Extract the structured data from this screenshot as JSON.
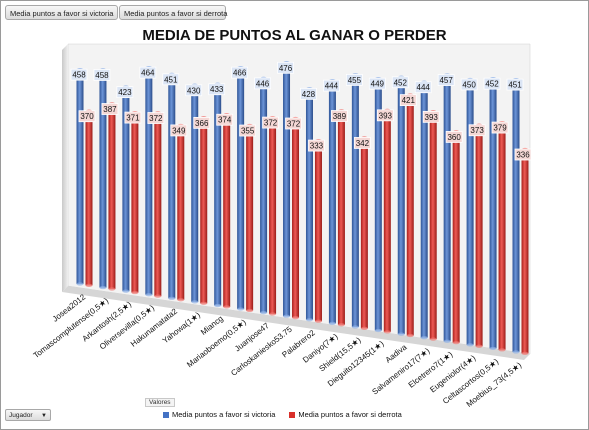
{
  "toolbar": {
    "field_victoria": "Media puntos a favor si victoria",
    "field_derrota": "Media puntos a favor si derrota",
    "valores_label": "Valores",
    "jugador_label": "Jugador"
  },
  "colors": {
    "victoria": "#4472c4",
    "derrota": "#d9302b",
    "label_bg_victoria": "#dbe5f5",
    "label_bg_derrota": "#f4d7d5"
  },
  "chart_data": {
    "type": "bar",
    "title": "MEDIA DE PUNTOS AL GANAR O PERDER",
    "categories": [
      "Josea2012",
      "Tomascomplutense(0,5★)",
      "Arkantosh(2,5★)",
      "Oliversevilla(0,5★)",
      "Hakunamatata2",
      "Yahowa(1★)",
      "Miancg",
      "Mariaoboemo(0,5★)",
      "Juanjose47",
      "Carloskaniesko53.75",
      "Palabrero2",
      "Daniyo(7★)",
      "Shield(15,5★)",
      "Dieguito12345(1★)",
      "Aadiva",
      "Salvameniro17(7★)",
      "Elcetrero7(1★)",
      "Eugeniolor(4★)",
      "Celtascortos(0,5★)",
      "Moebius_73(4,5★)"
    ],
    "series": [
      {
        "name": "Media puntos a favor si victoria",
        "values": [
          458,
          458,
          423,
          464,
          451,
          430,
          433,
          466,
          446,
          476,
          428,
          444,
          455,
          449,
          452,
          444,
          457,
          450,
          452,
          451
        ]
      },
      {
        "name": "Media puntos a favor si derrota",
        "values": [
          370,
          387,
          371,
          372,
          349,
          366,
          374,
          355,
          372,
          372,
          333,
          389,
          342,
          393,
          421,
          393,
          360,
          373,
          379,
          336
        ]
      }
    ],
    "legend_position": "bottom",
    "grid": false,
    "ylim": [
      0,
      500
    ]
  }
}
